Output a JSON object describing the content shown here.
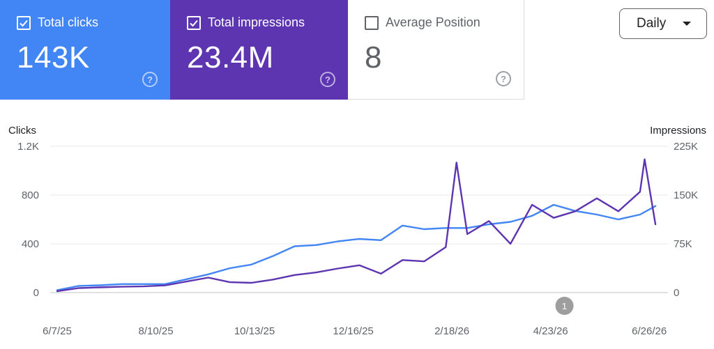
{
  "cards": {
    "clicks": {
      "label": "Total clicks",
      "value": "143K",
      "checked": true,
      "color": "#4285f4"
    },
    "impressions": {
      "label": "Total impressions",
      "value": "23.4M",
      "checked": true,
      "color": "#5e35b1"
    },
    "position": {
      "label": "Average Position",
      "value": "8",
      "checked": false
    }
  },
  "help_icon": "?",
  "range_select": {
    "value": "Daily",
    "icon": "caret-down-icon"
  },
  "annotation_marker": {
    "label": "1",
    "x": "5/2/26"
  },
  "chart_data": {
    "type": "line",
    "grid": true,
    "legend": "none",
    "y_left": {
      "title": "Clicks",
      "ticks": [
        "1.2K",
        "800",
        "400",
        "0"
      ],
      "tick_values": [
        1200,
        800,
        400,
        0
      ],
      "range": [
        0,
        1200
      ]
    },
    "y_right": {
      "title": "Impressions",
      "ticks": [
        "225K",
        "150K",
        "75K",
        "0"
      ],
      "tick_values": [
        225000,
        150000,
        75000,
        0
      ],
      "range": [
        0,
        225000
      ]
    },
    "x_start": "6/7/25",
    "x_end": "6/30/26",
    "x_ticks": [
      {
        "label": "6/7/25"
      },
      {
        "label": "8/10/25"
      },
      {
        "label": "10/13/25"
      },
      {
        "label": "12/16/25"
      },
      {
        "label": "2/18/26"
      },
      {
        "label": "4/23/26"
      },
      {
        "label": "6/26/26"
      }
    ],
    "series": [
      {
        "axis": "left",
        "color": "#4285f4",
        "points": [
          [
            "6/7/25",
            20
          ],
          [
            "6/21/25",
            55
          ],
          [
            "7/5/25",
            60
          ],
          [
            "7/19/25",
            70
          ],
          [
            "8/2/25",
            70
          ],
          [
            "8/16/25",
            70
          ],
          [
            "8/30/25",
            110
          ],
          [
            "9/13/25",
            150
          ],
          [
            "9/27/25",
            200
          ],
          [
            "10/11/25",
            230
          ],
          [
            "10/25/25",
            300
          ],
          [
            "11/8/25",
            380
          ],
          [
            "11/22/25",
            390
          ],
          [
            "12/6/25",
            420
          ],
          [
            "12/20/25",
            440
          ],
          [
            "1/3/26",
            430
          ],
          [
            "1/17/26",
            550
          ],
          [
            "1/31/26",
            520
          ],
          [
            "2/14/26",
            530
          ],
          [
            "2/28/26",
            530
          ],
          [
            "3/14/26",
            560
          ],
          [
            "3/28/26",
            580
          ],
          [
            "4/11/26",
            630
          ],
          [
            "4/25/26",
            720
          ],
          [
            "5/9/26",
            670
          ],
          [
            "5/23/26",
            640
          ],
          [
            "6/6/26",
            600
          ],
          [
            "6/20/26",
            640
          ],
          [
            "6/30/26",
            710
          ]
        ]
      },
      {
        "axis": "right",
        "color": "#5e35b1",
        "points": [
          [
            "6/7/25",
            2000
          ],
          [
            "6/21/25",
            7000
          ],
          [
            "7/5/25",
            8000
          ],
          [
            "7/19/25",
            9000
          ],
          [
            "8/2/25",
            9500
          ],
          [
            "8/16/25",
            11000
          ],
          [
            "8/30/25",
            17000
          ],
          [
            "9/13/25",
            23000
          ],
          [
            "9/27/25",
            16000
          ],
          [
            "10/11/25",
            15000
          ],
          [
            "10/25/25",
            20000
          ],
          [
            "11/8/25",
            27000
          ],
          [
            "11/22/25",
            31000
          ],
          [
            "12/6/25",
            37000
          ],
          [
            "12/20/25",
            42000
          ],
          [
            "1/3/26",
            29000
          ],
          [
            "1/17/26",
            50000
          ],
          [
            "1/31/26",
            48000
          ],
          [
            "2/14/26",
            70000
          ],
          [
            "2/21/26",
            200000
          ],
          [
            "2/28/26",
            90000
          ],
          [
            "3/14/26",
            110000
          ],
          [
            "3/28/26",
            75000
          ],
          [
            "4/11/26",
            135000
          ],
          [
            "4/25/26",
            115000
          ],
          [
            "5/9/26",
            125000
          ],
          [
            "5/23/26",
            145000
          ],
          [
            "6/6/26",
            125000
          ],
          [
            "6/20/26",
            155000
          ],
          [
            "6/23/26",
            205000
          ],
          [
            "6/30/26",
            105000
          ]
        ]
      }
    ]
  }
}
